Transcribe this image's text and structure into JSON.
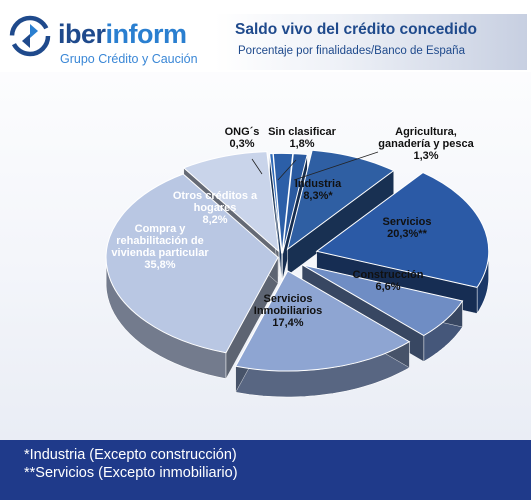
{
  "brand": {
    "name_dark": "iber",
    "name_light": "inform",
    "tagline": "Grupo Crédito y Caución",
    "logo_icon": "circular-arrows-logo-icon",
    "color_primary": "#1f4a8c",
    "color_accent": "#2a7fd0"
  },
  "header": {
    "title": "Saldo vivo del crédito concedido",
    "subtitle": "Porcentaje por finalidades/Banco de España"
  },
  "footer": {
    "notes": [
      "*Industria (Excepto construcción)",
      "**Servicios (Excepto inmobiliario)"
    ],
    "background": "#1f3a8a"
  },
  "chart_data": {
    "type": "pie",
    "title": "Saldo vivo del crédito concedido",
    "subtitle": "Porcentaje por finalidades/Banco de España",
    "style": "3d-exploded",
    "slices": [
      {
        "label": [
          "ONG´s"
        ],
        "value": 0.3,
        "value_label": "0,3%",
        "color": "#2f6ab8"
      },
      {
        "label": [
          "Sin clasificar"
        ],
        "value": 1.8,
        "value_label": "1,8%",
        "color": "#2c5fa8"
      },
      {
        "label": [
          "Agricultura,",
          "ganadería y pesca"
        ],
        "value": 1.3,
        "value_label": "1,3%",
        "color": "#2a5aa0"
      },
      {
        "label": [
          "Industria"
        ],
        "value": 8.3,
        "value_label": "8,3%*",
        "color": "#2f5fa3"
      },
      {
        "label": [
          "Servicios"
        ],
        "value": 20.3,
        "value_label": "20,3%**",
        "color": "#2b5aa6"
      },
      {
        "label": [
          "Construcción"
        ],
        "value": 6.6,
        "value_label": "6,6%",
        "color": "#6f8dc4"
      },
      {
        "label": [
          "Servicios",
          "Inmobiliarios"
        ],
        "value": 17.4,
        "value_label": "17,4%",
        "color": "#8ea5d2"
      },
      {
        "label": [
          "Compra y",
          "rehabilitación de",
          "vivienda particular"
        ],
        "value": 35.8,
        "value_label": "35,8%",
        "color": "#b9c7e3"
      },
      {
        "label": [
          "Otros créditos a",
          "hogares"
        ],
        "value": 8.2,
        "value_label": "8,2%",
        "color": "#c9d4ea"
      }
    ]
  }
}
